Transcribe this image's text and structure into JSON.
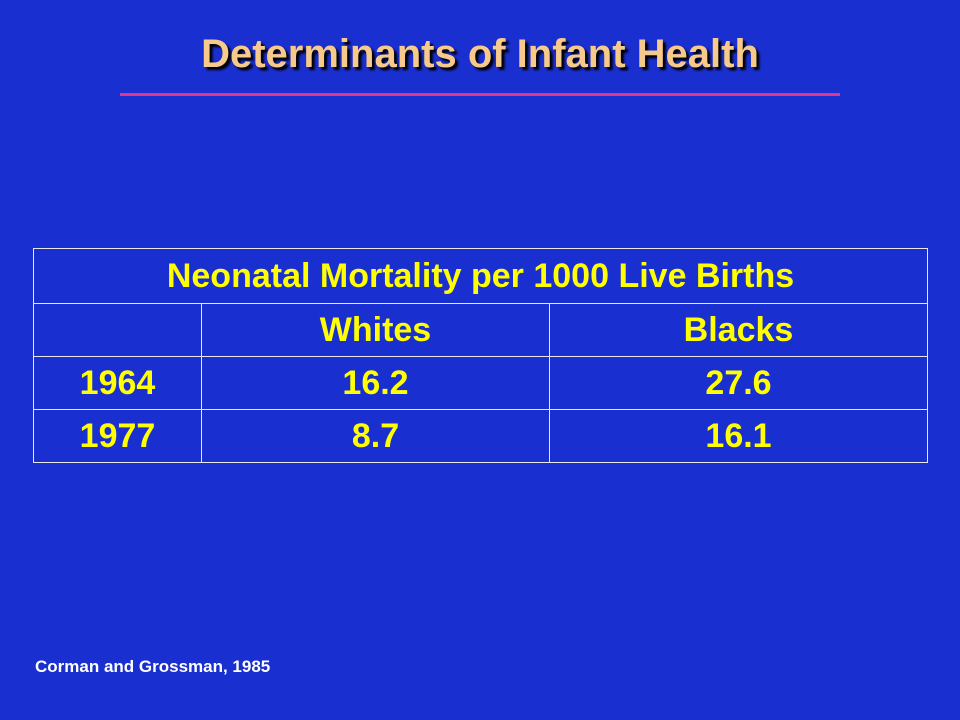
{
  "slide": {
    "title": "Determinants of Infant Health",
    "source": "Corman and Grossman, 1985"
  },
  "colors": {
    "background": "#1a2fcf",
    "title": "#f7c98a",
    "title_rule": "#e0358c",
    "table_text": "#ffff00",
    "table_border": "#e8e8e8",
    "source_text": "#ffffff"
  },
  "table": {
    "caption": "Neonatal Mortality per 1000 Live Births",
    "headers": [
      "",
      "Whites",
      "Blacks"
    ],
    "rows": [
      [
        "1964",
        "16.2",
        "27.6"
      ],
      [
        "1977",
        "8.7",
        "16.1"
      ]
    ]
  }
}
